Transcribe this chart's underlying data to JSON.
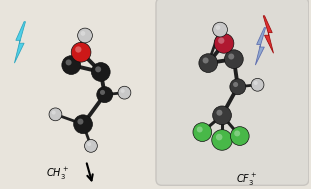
{
  "fig_width": 3.11,
  "fig_height": 1.89,
  "dpi": 100,
  "bg_color": "#e8e4dc",
  "right_panel_color": "#dddbd5",
  "right_panel_edge": "#c8c5c0",
  "left_lightning_color": "#50d0e8",
  "right_lightning_red": "#e03030",
  "right_lightning_blue": "#90a8d0",
  "left_label": "$CH_3^+$",
  "right_label": "$CF_3^+$",
  "label_fontsize": 7,
  "carbon_left": "#1a1a1a",
  "carbon_right": "#3a3a3a",
  "oxygen_left": "#cc1818",
  "oxygen_right": "#b01830",
  "hydrogen_color": "#c8c8c8",
  "fluorine_color": "#48b848",
  "bond_color": "#202020"
}
